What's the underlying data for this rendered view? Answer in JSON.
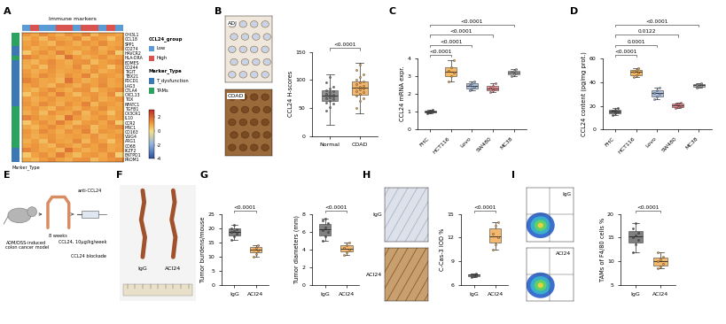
{
  "chart_data": [
    {
      "type": "heatmap",
      "title": "Immune markers",
      "tick_labels": "y",
      "rows": [
        "CHI3L1",
        "CCL18",
        "SPP1",
        "CD274",
        "HAVCR2",
        "HLA-DRA",
        "EOMES",
        "CD244",
        "TIGIT",
        "TBX21",
        "PDCD1",
        "LAG3",
        "CTLA4",
        "CXCL13",
        "TOX",
        "NFATC1",
        "TGFB1",
        "CX3CR1",
        "IL10",
        "CCR2",
        "MRC1",
        "CD163",
        "VSIG4",
        "ARG1",
        "CD68",
        "IKZF2",
        "ENTPD1",
        "PROM1"
      ],
      "column_annotation": {
        "title": "CCL24_group",
        "groups": [
          {
            "name": "Low",
            "color": "#5b9bd5"
          },
          {
            "name": "High",
            "color": "#d9534f"
          }
        ],
        "values": [
          "Low",
          "High",
          "Low",
          "Low",
          "High",
          "High",
          "Low",
          "High",
          "High",
          "Low",
          "High",
          "Low"
        ]
      },
      "row_annotation": {
        "title": "Marker_Type",
        "groups": [
          {
            "name": "T_dysfunction",
            "color": "#3c78b4"
          },
          {
            "name": "TAMs",
            "color": "#2ca25f"
          }
        ],
        "values": [
          "TAMs",
          "TAMs",
          "TAMs",
          "T_dysfunction",
          "T_dysfunction",
          "TAMs",
          "T_dysfunction",
          "T_dysfunction",
          "T_dysfunction",
          "T_dysfunction",
          "T_dysfunction",
          "T_dysfunction",
          "T_dysfunction",
          "T_dysfunction",
          "T_dysfunction",
          "T_dysfunction",
          "TAMs",
          "TAMs",
          "TAMs",
          "TAMs",
          "TAMs",
          "TAMs",
          "TAMs",
          "TAMs",
          "TAMs",
          "T_dysfunction",
          "T_dysfunction",
          "T_dysfunction"
        ]
      },
      "cells": [
        [
          1.2,
          0.9,
          1.4,
          1.1,
          0.8,
          1.3,
          1.0,
          1.5,
          0.7,
          1.2,
          1.1,
          0.9
        ],
        [
          0.8,
          1.1,
          0.6,
          1.3,
          1.0,
          0.9,
          1.4,
          0.7,
          1.2,
          1.0,
          0.5,
          1.1
        ],
        [
          1.0,
          1.2,
          0.9,
          0.7,
          1.3,
          1.1,
          0.8,
          1.2,
          1.0,
          1.4,
          0.9,
          1.0
        ],
        [
          1.1,
          0.8,
          1.0,
          1.2,
          0.9,
          1.0,
          1.1,
          0.9,
          1.3,
          0.8,
          1.0,
          1.2
        ],
        [
          0.4,
          1.0,
          1.3,
          0.9,
          1.6,
          1.0,
          0.6,
          1.1,
          1.2,
          0.9,
          1.4,
          0.3
        ],
        [
          1.5,
          1.2,
          0.9,
          1.0,
          0.7,
          1.8,
          1.1,
          0.8,
          1.0,
          1.3,
          0.9,
          1.1
        ],
        [
          0.9,
          0.7,
          1.1,
          1.4,
          1.0,
          0.8,
          1.2,
          1.3,
          0.6,
          1.0,
          1.2,
          1.4
        ],
        [
          0.8,
          1.1,
          0.6,
          1.3,
          1.0,
          0.9,
          1.4,
          0.7,
          1.2,
          1.0,
          0.5,
          1.1
        ],
        [
          1.1,
          0.8,
          1.0,
          1.2,
          0.9,
          1.0,
          1.1,
          0.9,
          1.3,
          0.8,
          1.0,
          1.2
        ],
        [
          1.2,
          0.9,
          1.4,
          1.1,
          0.8,
          1.3,
          1.0,
          1.5,
          0.7,
          1.2,
          1.1,
          0.9
        ],
        [
          1.5,
          1.2,
          0.9,
          1.0,
          0.7,
          1.8,
          1.1,
          0.8,
          1.0,
          1.3,
          0.9,
          1.1
        ],
        [
          1.0,
          1.2,
          0.9,
          0.7,
          1.3,
          1.1,
          0.8,
          1.2,
          1.0,
          1.4,
          0.9,
          1.0
        ],
        [
          0.9,
          0.7,
          1.1,
          1.4,
          1.0,
          0.8,
          1.2,
          1.3,
          0.6,
          1.0,
          1.2,
          1.4
        ],
        [
          0.4,
          1.0,
          1.3,
          0.9,
          1.6,
          1.0,
          0.6,
          1.1,
          1.2,
          0.9,
          1.4,
          0.3
        ],
        [
          1.1,
          0.8,
          1.0,
          1.2,
          0.9,
          1.0,
          1.1,
          0.9,
          1.3,
          0.8,
          1.0,
          1.2
        ],
        [
          1.2,
          0.9,
          1.4,
          1.1,
          0.8,
          1.3,
          1.0,
          1.5,
          0.7,
          1.2,
          1.1,
          0.9
        ],
        [
          1.0,
          1.2,
          0.9,
          0.7,
          1.3,
          1.1,
          0.8,
          1.2,
          1.0,
          1.4,
          0.9,
          1.0
        ],
        [
          0.8,
          1.1,
          0.6,
          1.3,
          1.0,
          0.9,
          1.4,
          0.7,
          1.2,
          1.0,
          0.5,
          1.1
        ],
        [
          1.5,
          1.2,
          0.9,
          1.0,
          0.7,
          1.8,
          1.1,
          0.8,
          1.0,
          1.3,
          0.9,
          1.1
        ],
        [
          0.4,
          1.0,
          1.3,
          0.9,
          1.6,
          1.0,
          0.6,
          1.1,
          1.2,
          0.9,
          1.4,
          0.3
        ],
        [
          0.9,
          0.7,
          1.1,
          1.4,
          1.0,
          0.8,
          1.2,
          1.3,
          0.6,
          1.0,
          1.2,
          1.4
        ],
        [
          1.2,
          0.9,
          1.4,
          1.1,
          0.8,
          1.3,
          1.0,
          1.5,
          0.7,
          1.2,
          1.1,
          0.9
        ],
        [
          1.1,
          0.8,
          1.0,
          1.2,
          0.9,
          1.0,
          1.1,
          0.9,
          1.3,
          0.8,
          1.0,
          1.2
        ],
        [
          0.8,
          1.1,
          0.6,
          1.3,
          1.0,
          0.9,
          1.4,
          0.7,
          1.2,
          1.0,
          0.5,
          1.1
        ],
        [
          1.0,
          1.2,
          0.9,
          0.7,
          1.3,
          1.1,
          0.8,
          1.2,
          1.0,
          1.4,
          0.9,
          1.0
        ],
        [
          1.5,
          1.2,
          0.9,
          1.0,
          0.7,
          1.8,
          1.1,
          0.8,
          1.0,
          1.3,
          0.9,
          1.1
        ],
        [
          0.4,
          1.0,
          1.3,
          0.9,
          1.6,
          1.0,
          0.6,
          1.1,
          1.2,
          0.9,
          1.4,
          0.3
        ],
        [
          0.9,
          0.7,
          1.1,
          1.4,
          1.0,
          0.8,
          1.2,
          1.3,
          0.6,
          1.0,
          1.2,
          1.4
        ]
      ],
      "colorbar": {
        "range": [
          -4,
          3
        ],
        "ticks": [
          -4,
          -2,
          0,
          2
        ]
      }
    },
    {
      "type": "box",
      "y_label": "CCL24 H-scores",
      "categories": [
        "Normal",
        "COAD"
      ],
      "colors": [
        "#6e6e6e",
        "#f0a040"
      ],
      "stats": [
        {
          "min": 20,
          "q1": 62,
          "median": 72,
          "q3": 82,
          "max": 110
        },
        {
          "min": 40,
          "q1": 73,
          "median": 86,
          "q3": 98,
          "max": 130
        }
      ],
      "points": [
        [
          45,
          52,
          58,
          60,
          63,
          65,
          67,
          69,
          70,
          72,
          73,
          74,
          76,
          78,
          80,
          82,
          85,
          88,
          95,
          105
        ],
        [
          50,
          62,
          68,
          72,
          75,
          78,
          80,
          83,
          85,
          86,
          88,
          90,
          93,
          96,
          98,
          100,
          105,
          110,
          118,
          128
        ]
      ],
      "ylim": [
        0,
        150
      ],
      "yticks": [
        0,
        50,
        100,
        150
      ],
      "comparisons": [
        {
          "groups": [
            0,
            1
          ],
          "label": "<0.0001"
        }
      ]
    },
    {
      "type": "box",
      "y_label": "CCL24 mRNA expr.",
      "categories": [
        "FHC",
        "HCT116",
        "Lovo",
        "SW480",
        "MC38"
      ],
      "colors": [
        "#4d4d4d",
        "#f0a030",
        "#8fa8d0",
        "#e8707a",
        "#a0a0a0"
      ],
      "stats": [
        {
          "min": 0.9,
          "q1": 0.95,
          "median": 1.0,
          "q3": 1.05,
          "max": 1.1
        },
        {
          "min": 2.7,
          "q1": 3.0,
          "median": 3.25,
          "q3": 3.5,
          "max": 3.9
        },
        {
          "min": 2.2,
          "q1": 2.3,
          "median": 2.45,
          "q3": 2.6,
          "max": 2.7
        },
        {
          "min": 2.1,
          "q1": 2.2,
          "median": 2.32,
          "q3": 2.45,
          "max": 2.6
        },
        {
          "min": 3.0,
          "q1": 3.1,
          "median": 3.22,
          "q3": 3.3,
          "max": 3.4
        }
      ],
      "points": [
        [
          0.9,
          0.95,
          1.0,
          1.0,
          1.05,
          1.1
        ],
        [
          2.7,
          3.0,
          3.2,
          3.3,
          3.5,
          3.9
        ],
        [
          2.2,
          2.3,
          2.4,
          2.5,
          2.6,
          2.7
        ],
        [
          2.1,
          2.2,
          2.3,
          2.35,
          2.45,
          2.6
        ],
        [
          3.0,
          3.1,
          3.2,
          3.25,
          3.3,
          3.4
        ]
      ],
      "ylim": [
        0,
        4
      ],
      "yticks": [
        0,
        1,
        2,
        3,
        4
      ],
      "comparisons": [
        {
          "groups": [
            0,
            1
          ],
          "label": "<0.0001"
        },
        {
          "groups": [
            0,
            2
          ],
          "label": "<0.0001"
        },
        {
          "groups": [
            0,
            3
          ],
          "label": "<0.0001"
        },
        {
          "groups": [
            0,
            4
          ],
          "label": "<0.0001"
        }
      ]
    },
    {
      "type": "box",
      "y_label": "CCL24 content (pg/mg prot.)",
      "categories": [
        "FHC",
        "HCT116",
        "Lovo",
        "SW480",
        "MC38"
      ],
      "colors": [
        "#4d4d4d",
        "#f0a030",
        "#8fa8d0",
        "#e8707a",
        "#a0a0a0"
      ],
      "stats": [
        {
          "min": 12,
          "q1": 14,
          "median": 15.5,
          "q3": 17,
          "max": 18
        },
        {
          "min": 44,
          "q1": 46,
          "median": 48.5,
          "q3": 50,
          "max": 52
        },
        {
          "min": 26,
          "q1": 28,
          "median": 30.5,
          "q3": 33,
          "max": 35
        },
        {
          "min": 18,
          "q1": 19,
          "median": 20.5,
          "q3": 22,
          "max": 23
        },
        {
          "min": 35,
          "q1": 36,
          "median": 37.2,
          "q3": 38,
          "max": 39
        }
      ],
      "points": [
        [
          12,
          14,
          15,
          16,
          17,
          18
        ],
        [
          44,
          46,
          48,
          49,
          50,
          52
        ],
        [
          26,
          28,
          30,
          31,
          33,
          35
        ],
        [
          18,
          19,
          20,
          21,
          22,
          23
        ],
        [
          35,
          36,
          37,
          37.5,
          38,
          39
        ]
      ],
      "ylim": [
        0,
        60
      ],
      "yticks": [
        0,
        20,
        40,
        60
      ],
      "comparisons": [
        {
          "groups": [
            0,
            1
          ],
          "label": "<0.0001"
        },
        {
          "groups": [
            0,
            2
          ],
          "label": "0.0001"
        },
        {
          "groups": [
            0,
            3
          ],
          "label": "0.0122"
        },
        {
          "groups": [
            0,
            4
          ],
          "label": "<0.0001"
        }
      ]
    },
    {
      "type": "box",
      "y_label": "Tumor burdens/mouse",
      "categories": [
        "IgG",
        "ACl24"
      ],
      "colors": [
        "#555555",
        "#f0a040"
      ],
      "stats": [
        {
          "min": 16,
          "q1": 17.5,
          "median": 18.8,
          "q3": 19.8,
          "max": 21
        },
        {
          "min": 10,
          "q1": 11.5,
          "median": 12.3,
          "q3": 13.3,
          "max": 14
        }
      ],
      "points": [
        [
          16,
          17,
          18,
          18.5,
          19,
          19.5,
          20,
          21
        ],
        [
          10,
          11,
          12,
          12.5,
          13,
          14
        ]
      ],
      "ylim": [
        0,
        25
      ],
      "yticks": [
        0,
        5,
        10,
        15,
        20,
        25
      ],
      "comparisons": [
        {
          "groups": [
            0,
            1
          ],
          "label": "<0.0001"
        }
      ]
    },
    {
      "type": "box",
      "y_label": "Tumor diameters (mm)",
      "categories": [
        "IgG",
        "ACl24"
      ],
      "colors": [
        "#555555",
        "#f0a040"
      ],
      "stats": [
        {
          "min": 5,
          "q1": 5.6,
          "median": 6.3,
          "q3": 6.9,
          "max": 7.5
        },
        {
          "min": 3.4,
          "q1": 3.8,
          "median": 4.1,
          "q3": 4.5,
          "max": 4.8
        }
      ],
      "points": [
        [
          5,
          5.5,
          6,
          6.2,
          6.5,
          7,
          7.3,
          7.5
        ],
        [
          3.4,
          3.7,
          4,
          4.2,
          4.5,
          4.8
        ]
      ],
      "ylim": [
        0,
        8
      ],
      "yticks": [
        0,
        2,
        4,
        6,
        8
      ],
      "comparisons": [
        {
          "groups": [
            0,
            1
          ],
          "label": "<0.0001"
        }
      ]
    },
    {
      "type": "box",
      "y_label": "C-Cas-3 IOD %",
      "categories": [
        "IgG",
        "ACl24"
      ],
      "colors": [
        "#555555",
        "#f0a040"
      ],
      "stats": [
        {
          "min": 7.0,
          "q1": 7.15,
          "median": 7.3,
          "q3": 7.4,
          "max": 7.5
        },
        {
          "min": 10.5,
          "q1": 11.4,
          "median": 12.2,
          "q3": 13.2,
          "max": 14
        }
      ],
      "points": [
        [
          7.0,
          7.1,
          7.2,
          7.3,
          7.4,
          7.5
        ],
        [
          10.5,
          11.2,
          12,
          12.5,
          13.5,
          14
        ]
      ],
      "ylim": [
        6,
        15
      ],
      "yticks": [
        6,
        9,
        12,
        15
      ],
      "comparisons": [
        {
          "groups": [
            0,
            1
          ],
          "label": "<0.0001"
        }
      ]
    },
    {
      "type": "box",
      "y_label": "TAMs of F4/80 cells %",
      "categories": [
        "IgG",
        "ACl24"
      ],
      "colors": [
        "#555555",
        "#f0a040"
      ],
      "stats": [
        {
          "min": 12,
          "q1": 14,
          "median": 15.2,
          "q3": 16.3,
          "max": 18
        },
        {
          "min": 8.5,
          "q1": 9.2,
          "median": 10,
          "q3": 10.8,
          "max": 12
        }
      ],
      "points": [
        [
          12,
          13.5,
          14.5,
          15,
          15.5,
          16,
          17,
          18
        ],
        [
          8.5,
          9,
          9.5,
          10,
          10.5,
          11,
          12
        ]
      ],
      "ylim": [
        5,
        20
      ],
      "yticks": [
        5,
        10,
        15,
        20
      ],
      "comparisons": [
        {
          "groups": [
            0,
            1
          ],
          "label": "<0.0001"
        }
      ]
    }
  ],
  "panel_labels": [
    "A",
    "B",
    "C",
    "D",
    "E",
    "F",
    "G",
    "H",
    "I"
  ],
  "images": {
    "B": [
      "ADJ",
      "COAD"
    ],
    "F": [
      "IgG",
      "ACl24"
    ],
    "H": [
      "IgG",
      "ACl24"
    ],
    "I": [
      "IgG",
      "ACl24"
    ]
  },
  "schematic": {
    "model": [
      "AOM/DSS-induced",
      "colon cancer model"
    ],
    "time": "8 weeks",
    "treatment": "anti-CCL24",
    "dose": "CCL24, 10μg/kg/week",
    "outcome": "CCL24 blockade"
  }
}
